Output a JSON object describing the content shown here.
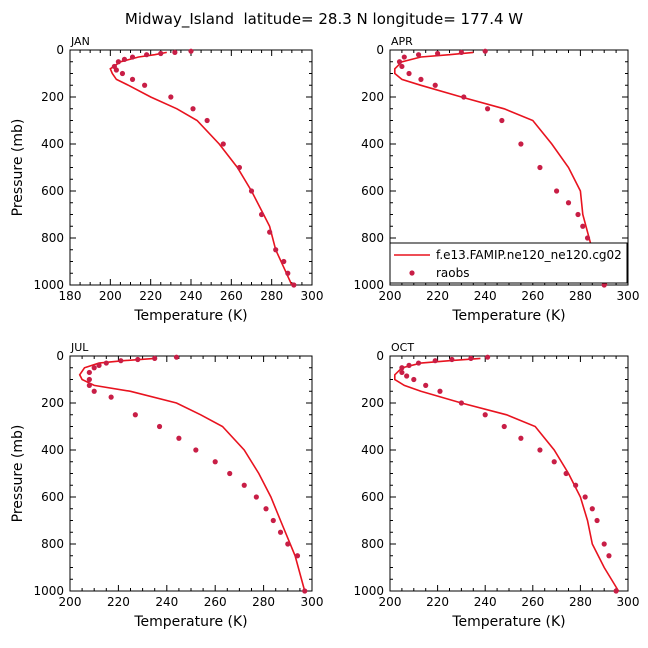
{
  "title": "Midway_Island  latitude= 28.3 N longitude= 177.4 W",
  "colors": {
    "model_line": "#e8131f",
    "obs_marker": "#c81e46",
    "axes": "#000000"
  },
  "legend": {
    "placement": "inside APR panel, lower-right",
    "model_label": "f.e13.FAMIP.ne120_ne120.cg02",
    "obs_label": "raobs"
  },
  "chart_data": [
    {
      "type": "line",
      "panel": "JAN",
      "xlabel": "Temperature (K)",
      "ylabel": "Pressure (mb)",
      "xlim": [
        180,
        300
      ],
      "ylim": [
        1000,
        0
      ],
      "y_reversed": true,
      "xticks": [
        180,
        200,
        220,
        240,
        260,
        280,
        300
      ],
      "yticks": [
        0,
        200,
        400,
        600,
        800,
        1000
      ],
      "model": {
        "temperature": [
          228,
          222,
          214,
          205,
          200,
          201,
          203,
          209,
          220,
          233,
          243,
          254,
          263,
          270,
          276,
          279,
          282,
          286,
          290
        ],
        "pressure": [
          10,
          20,
          30,
          50,
          80,
          100,
          125,
          150,
          200,
          250,
          300,
          400,
          500,
          600,
          700,
          750,
          850,
          925,
          1000
        ]
      },
      "obs": {
        "temperature": [
          240,
          232,
          225,
          218,
          211,
          207,
          204,
          202,
          203,
          206,
          211,
          217,
          230,
          241,
          248,
          256,
          264,
          270,
          275,
          279,
          282,
          286,
          288,
          291
        ],
        "pressure": [
          5,
          10,
          15,
          20,
          30,
          40,
          50,
          70,
          85,
          100,
          125,
          150,
          200,
          250,
          300,
          400,
          500,
          600,
          700,
          775,
          850,
          900,
          950,
          1000
        ]
      }
    },
    {
      "type": "line",
      "panel": "APR",
      "xlabel": "Temperature (K)",
      "ylabel": "",
      "xlim": [
        200,
        300
      ],
      "ylim": [
        1000,
        0
      ],
      "y_reversed": true,
      "xticks": [
        200,
        220,
        240,
        260,
        280,
        300
      ],
      "yticks": [
        0,
        200,
        400,
        600,
        800,
        1000
      ],
      "model": {
        "temperature": [
          235,
          225,
          213,
          205,
          202,
          202,
          205,
          213,
          230,
          248,
          260,
          268,
          275,
          280,
          281,
          285,
          291
        ],
        "pressure": [
          10,
          20,
          30,
          50,
          80,
          100,
          125,
          150,
          200,
          250,
          300,
          400,
          500,
          600,
          700,
          850,
          1000
        ]
      },
      "obs": {
        "temperature": [
          240,
          230,
          220,
          212,
          206,
          204,
          205,
          208,
          213,
          219,
          231,
          241,
          247,
          255,
          263,
          270,
          275,
          279,
          281,
          283,
          285,
          287,
          290
        ],
        "pressure": [
          5,
          10,
          15,
          20,
          30,
          50,
          70,
          100,
          125,
          150,
          200,
          250,
          300,
          400,
          500,
          600,
          650,
          700,
          750,
          800,
          850,
          925,
          1000
        ]
      }
    },
    {
      "type": "line",
      "panel": "JUL",
      "xlabel": "Temperature (K)",
      "ylabel": "Pressure (mb)",
      "xlim": [
        200,
        300
      ],
      "ylim": [
        1000,
        0
      ],
      "y_reversed": true,
      "xticks": [
        200,
        220,
        240,
        260,
        280,
        300
      ],
      "yticks": [
        0,
        200,
        400,
        600,
        800,
        1000
      ],
      "model": {
        "temperature": [
          235,
          222,
          212,
          206,
          204,
          205,
          210,
          225,
          244,
          254,
          263,
          272,
          278,
          283,
          287,
          293,
          297
        ],
        "pressure": [
          10,
          20,
          30,
          50,
          80,
          100,
          125,
          150,
          200,
          250,
          300,
          400,
          500,
          600,
          700,
          850,
          1000
        ]
      },
      "obs": {
        "temperature": [
          244,
          235,
          228,
          221,
          215,
          212,
          210,
          208,
          208,
          208,
          210,
          217,
          227,
          237,
          245,
          252,
          260,
          266,
          272,
          277,
          281,
          284,
          287,
          290,
          294,
          297
        ],
        "pressure": [
          5,
          10,
          15,
          20,
          30,
          40,
          50,
          70,
          100,
          125,
          150,
          175,
          250,
          300,
          350,
          400,
          450,
          500,
          550,
          600,
          650,
          700,
          750,
          800,
          850,
          1000
        ]
      }
    },
    {
      "type": "line",
      "panel": "OCT",
      "xlabel": "Temperature (K)",
      "ylabel": "",
      "xlim": [
        200,
        300
      ],
      "ylim": [
        1000,
        0
      ],
      "y_reversed": true,
      "xticks": [
        200,
        220,
        240,
        260,
        280,
        300
      ],
      "yticks": [
        0,
        200,
        400,
        600,
        800,
        1000
      ],
      "model": {
        "temperature": [
          238,
          225,
          213,
          205,
          202,
          202,
          206,
          213,
          230,
          249,
          261,
          269,
          275,
          280,
          283,
          285,
          290,
          296
        ],
        "pressure": [
          10,
          20,
          30,
          50,
          80,
          100,
          125,
          150,
          200,
          250,
          300,
          400,
          500,
          600,
          700,
          800,
          900,
          1000
        ]
      },
      "obs": {
        "temperature": [
          241,
          234,
          226,
          219,
          212,
          208,
          205,
          205,
          207,
          210,
          215,
          221,
          230,
          240,
          248,
          255,
          263,
          269,
          274,
          278,
          282,
          285,
          287,
          290,
          292,
          295
        ],
        "pressure": [
          5,
          10,
          15,
          20,
          30,
          40,
          50,
          70,
          85,
          100,
          125,
          150,
          200,
          250,
          300,
          350,
          400,
          450,
          500,
          550,
          600,
          650,
          700,
          800,
          850,
          1000
        ]
      }
    }
  ]
}
